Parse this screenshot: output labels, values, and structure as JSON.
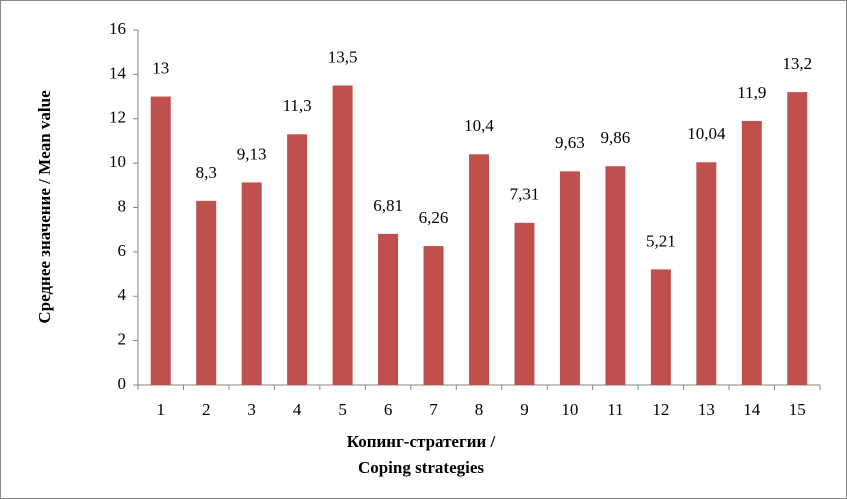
{
  "chart_data": {
    "type": "bar",
    "y_label": "Среднее значение / Mean value",
    "x_label": [
      "Копинг-стратегии /",
      "Coping strategies"
    ],
    "categories": [
      "1",
      "2",
      "3",
      "4",
      "5",
      "6",
      "7",
      "8",
      "9",
      "10",
      "11",
      "12",
      "13",
      "14",
      "15"
    ],
    "values": [
      13,
      8.3,
      9.13,
      11.3,
      13.5,
      6.81,
      6.26,
      10.4,
      7.31,
      9.63,
      9.86,
      5.21,
      10.04,
      11.9,
      13.2
    ],
    "value_labels": [
      "13",
      "8,3",
      "9,13",
      "11,3",
      "13,5",
      "6,81",
      "6,26",
      "10,4",
      "7,31",
      "9,63",
      "9,86",
      "5,21",
      "10,04",
      "11,9",
      "13,2"
    ],
    "color": "#c0504d",
    "ylim": [
      0,
      16
    ],
    "yticks": [
      0,
      2,
      4,
      6,
      8,
      10,
      12,
      14,
      16
    ],
    "grid": false
  }
}
